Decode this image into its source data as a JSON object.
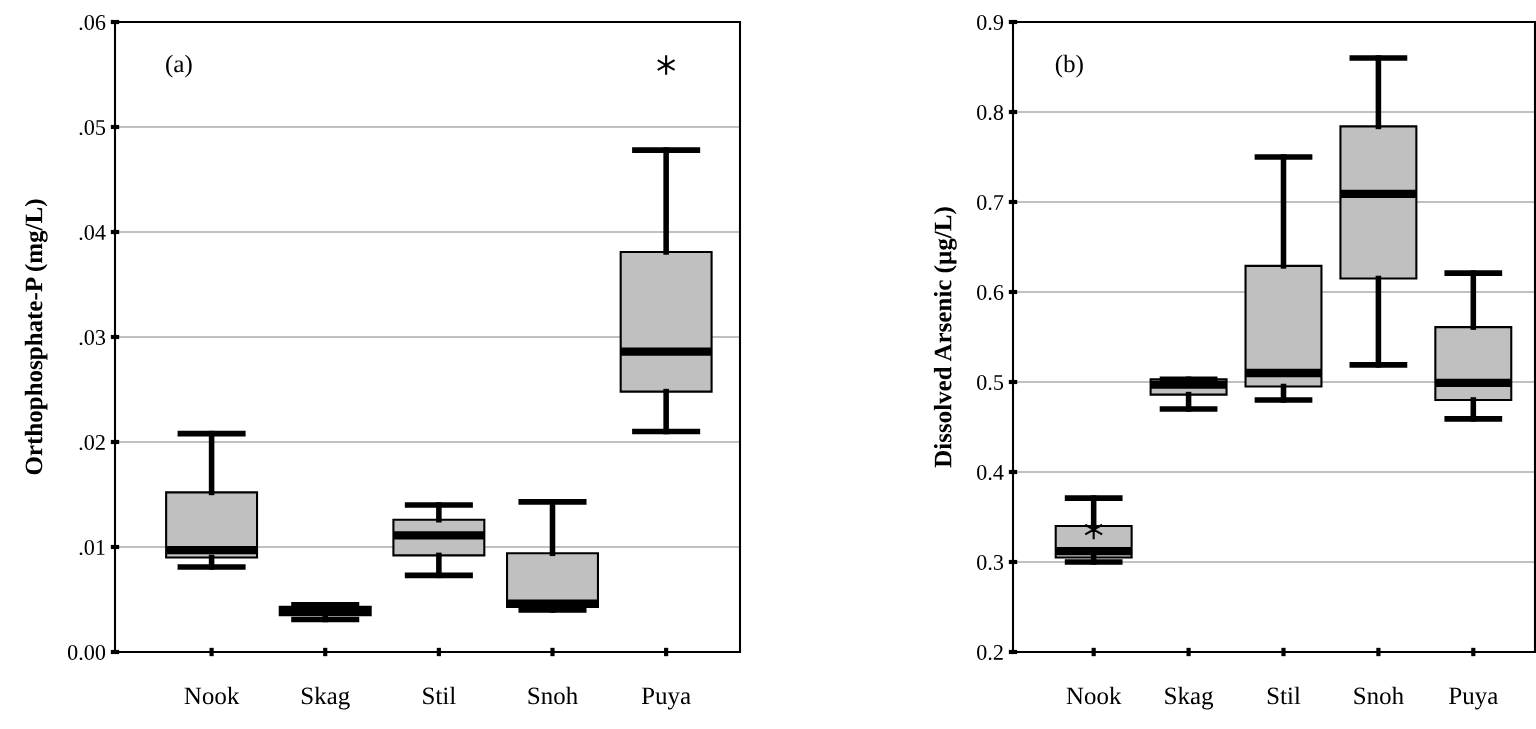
{
  "chart_data": [
    {
      "type": "box",
      "ylabel": "Orthophosphate-P (mg/L)",
      "annotations": [
        "(a)"
      ],
      "categories": [
        "Nook",
        "Skag",
        "Stil",
        "Snoh",
        "Puya"
      ],
      "boxes": [
        {
          "low": 0.0081,
          "q1": 0.009,
          "median": 0.0097,
          "q3": 0.0152,
          "high": 0.0208
        },
        {
          "low": 0.0031,
          "q1": 0.0035,
          "median": 0.0039,
          "q3": 0.0043,
          "high": 0.0045
        },
        {
          "low": 0.0073,
          "q1": 0.0092,
          "median": 0.0111,
          "q3": 0.0126,
          "high": 0.014
        },
        {
          "low": 0.004,
          "q1": 0.0043,
          "median": 0.0046,
          "q3": 0.0094,
          "high": 0.0143
        },
        {
          "low": 0.021,
          "q1": 0.0248,
          "median": 0.0286,
          "q3": 0.0381,
          "high": 0.0478,
          "outliers": [
            0.0559
          ]
        }
      ],
      "color": "#c0c0c0",
      "ylim": [
        0,
        0.06
      ],
      "yticks": [
        {
          "value": 0,
          "label": "0.00"
        },
        {
          "value": 0.01,
          "label": ".01"
        },
        {
          "value": 0.02,
          "label": ".02"
        },
        {
          "value": 0.03,
          "label": ".03"
        },
        {
          "value": 0.04,
          "label": ".04"
        },
        {
          "value": 0.05,
          "label": ".05"
        },
        {
          "value": 0.06,
          "label": ".06"
        }
      ],
      "grid": "y"
    },
    {
      "type": "box",
      "ylabel": "Dissolved Arsenic (µg/L)",
      "annotations": [
        "(b)"
      ],
      "categories": [
        "Nook",
        "Skag",
        "Stil",
        "Snoh",
        "Puya"
      ],
      "boxes": [
        {
          "low": 0.3,
          "q1": 0.305,
          "median": 0.312,
          "q3": 0.34,
          "high": 0.371,
          "outliers": [
            0.336
          ]
        },
        {
          "low": 0.47,
          "q1": 0.486,
          "median": 0.497,
          "q3": 0.503,
          "high": 0.503
        },
        {
          "low": 0.48,
          "q1": 0.495,
          "median": 0.51,
          "q3": 0.629,
          "high": 0.75
        },
        {
          "low": 0.519,
          "q1": 0.615,
          "median": 0.709,
          "q3": 0.784,
          "high": 0.86
        },
        {
          "low": 0.459,
          "q1": 0.48,
          "median": 0.499,
          "q3": 0.561,
          "high": 0.621
        }
      ],
      "color": "#c0c0c0",
      "ylim": [
        0.2,
        0.9
      ],
      "yticks": [
        0.2,
        0.3,
        0.4,
        0.5,
        0.6,
        0.7,
        0.8,
        0.9
      ],
      "grid": "y"
    }
  ]
}
